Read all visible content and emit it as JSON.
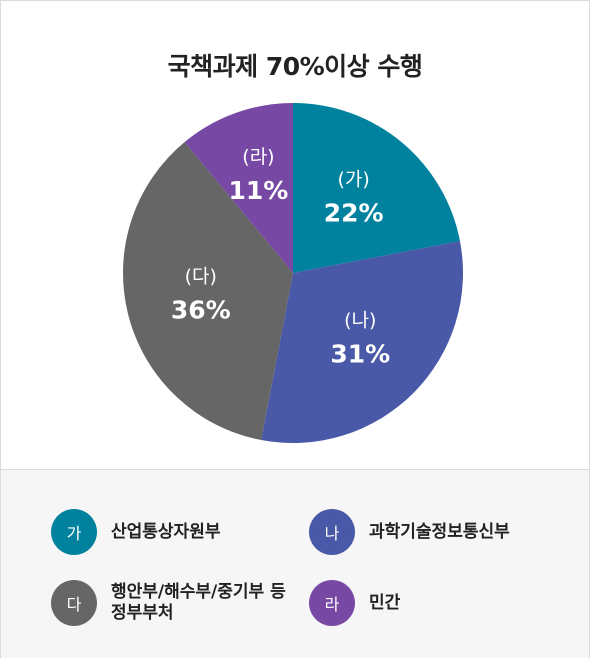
{
  "chart_data": {
    "type": "pie",
    "title": "국책과제 70%이상 수행",
    "slices": [
      {
        "key": "가",
        "label": "(가)",
        "value": 22,
        "value_label": "22%",
        "color": "#00829f",
        "name": "산업통상자원부"
      },
      {
        "key": "나",
        "label": "(나)",
        "value": 31,
        "value_label": "31%",
        "color": "#4a59a7",
        "name": "과학기술정보통신부"
      },
      {
        "key": "다",
        "label": "(다)",
        "value": 36,
        "value_label": "36%",
        "color": "#666666",
        "name": "행안부/해수부/중기부 등 정부부처"
      },
      {
        "key": "라",
        "label": "(라)",
        "value": 11,
        "value_label": "11%",
        "color": "#7749a5",
        "name": "민간"
      }
    ],
    "legend_position": "bottom"
  }
}
